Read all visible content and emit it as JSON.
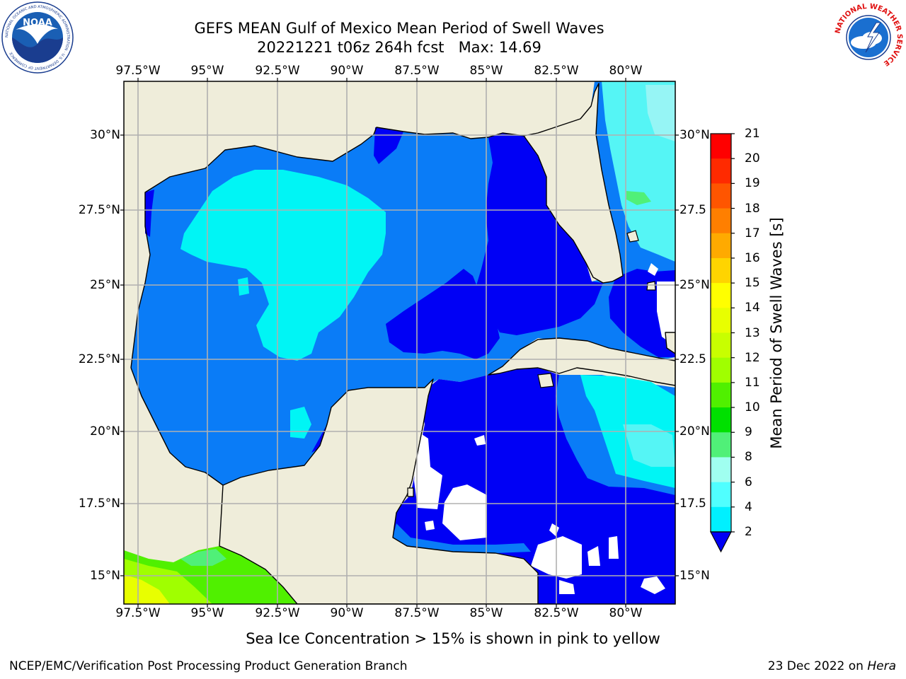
{
  "header": {
    "title_line1": "GEFS MEAN Gulf of Mexico Mean Period of Swell Waves",
    "title_line2": "20221221 t06z 264h fcst   Max: 14.69"
  },
  "logos": {
    "noaa_text": "NOAA",
    "noaa_ring_text": "NATIONAL OCEANIC AND ATMOSPHERIC ADMINISTRATION · U.S. DEPARTMENT OF COMMERCE",
    "nws_ring_text": "NATIONAL WEATHER SERVICE"
  },
  "map": {
    "lon_labels": [
      "97.5°W",
      "95°W",
      "92.5°W",
      "90°W",
      "87.5°W",
      "85°W",
      "82.5°W",
      "80°W"
    ],
    "lat_labels_left": [
      "30°N",
      "27.5°N",
      "25°N",
      "22.5°N",
      "20°N",
      "17.5°N",
      "15°N"
    ],
    "lat_labels_right": [
      "30°N",
      "27.5",
      "25°N",
      "22.5",
      "20°N",
      "17.5",
      "15°N"
    ],
    "lon_range": [
      -98,
      -78.3
    ],
    "lat_range": [
      14,
      31.8
    ],
    "colors": {
      "land": "#efedda",
      "ocean_blue_2": "#0000f5",
      "ocean_2_4": "#0a7cf7",
      "ocean_4_6": "#00f5f5",
      "ocean_6_8": "#55f5f5",
      "ocean_8_9": "#96f5f5",
      "grid": "#b0b0b0"
    }
  },
  "colorbar": {
    "label": "Mean Period of Swell Waves [s]",
    "ticks": [
      "21",
      "20",
      "19",
      "18",
      "17",
      "16",
      "15",
      "14",
      "13",
      "12",
      "11",
      "10",
      "9",
      "8",
      "6",
      "4",
      "2"
    ],
    "colors": [
      "#ff0000",
      "#ff2a00",
      "#ff5500",
      "#ff7f00",
      "#ffaa00",
      "#ffd400",
      "#ffff00",
      "#e8ff00",
      "#c8ff00",
      "#a0ff00",
      "#50f000",
      "#00e000",
      "#50f078",
      "#a0fff0",
      "#50ffff",
      "#00f0ff",
      "#0a7cf7",
      "#0000f5"
    ]
  },
  "note": "Sea Ice Concentration > 15% is shown in pink to yellow",
  "footer": {
    "left": "NCEP/EMC/Verification Post Processing Product Generation Branch",
    "date": "23 Dec 2022 on ",
    "host": "Hera"
  }
}
